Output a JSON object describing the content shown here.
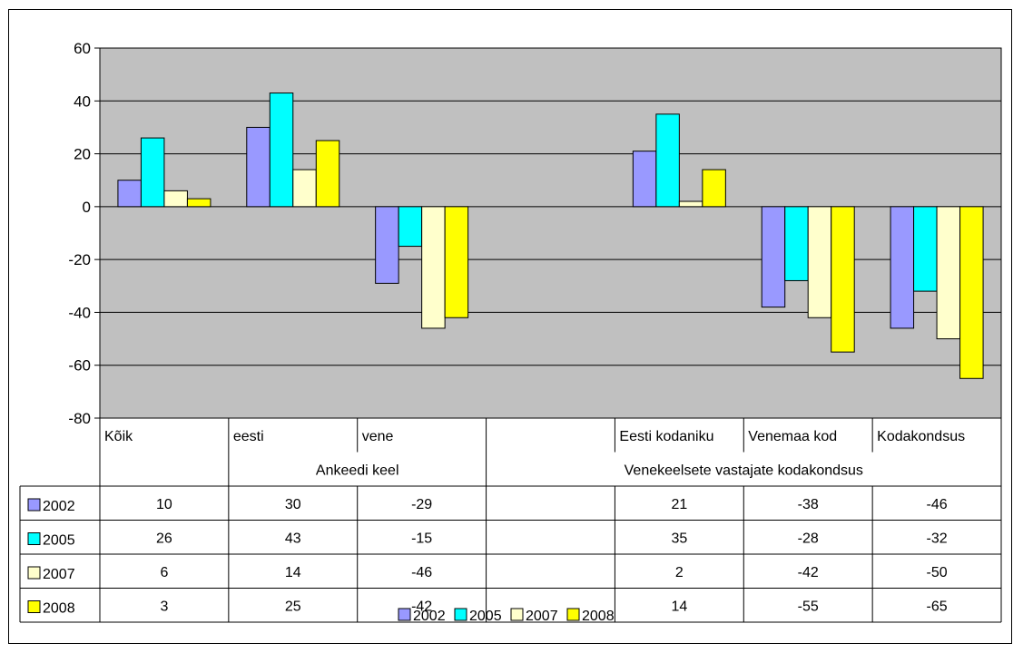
{
  "chart_data": {
    "type": "bar",
    "categories": [
      "Kõik",
      "eesti",
      "vene",
      "",
      "Eesti kodaniku",
      "Venemaa kod",
      "Kodakondsus"
    ],
    "groups": [
      {
        "label": "",
        "span": 1
      },
      {
        "label": "Ankeedi keel",
        "span": 2
      },
      {
        "label": "Venekeelsete vastajate kodakondsus",
        "span": 4
      }
    ],
    "series": [
      {
        "name": "2002",
        "color": "#9999ff",
        "values": [
          10,
          30,
          -29,
          null,
          21,
          -38,
          -46
        ]
      },
      {
        "name": "2005",
        "color": "#00ffff",
        "values": [
          26,
          43,
          -15,
          null,
          35,
          -28,
          -32
        ]
      },
      {
        "name": "2007",
        "color": "#ffffcc",
        "values": [
          6,
          14,
          -46,
          null,
          2,
          -42,
          -50
        ]
      },
      {
        "name": "2008",
        "color": "#ffff00",
        "values": [
          3,
          25,
          -42,
          null,
          14,
          -55,
          -65
        ]
      }
    ],
    "ylim": [
      -80,
      60
    ],
    "yticks": [
      60,
      40,
      20,
      0,
      -20,
      -40,
      -60,
      -80
    ],
    "grid": true,
    "plot_background": "#c0c0c0",
    "legend_position": "bottom",
    "data_table": true
  }
}
